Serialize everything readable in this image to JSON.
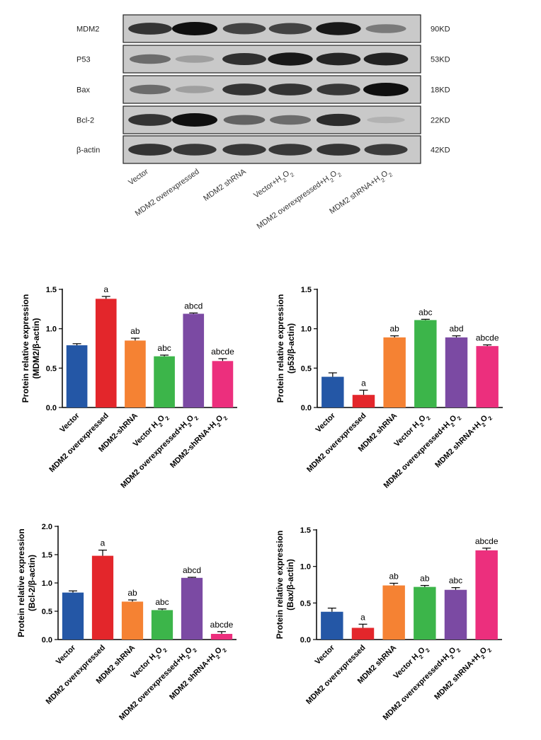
{
  "blot": {
    "rows": [
      {
        "label": "MDM2",
        "size": "90KD",
        "intensity": [
          0.8,
          1.0,
          0.72,
          0.72,
          0.95,
          0.42
        ]
      },
      {
        "label": "P53",
        "size": "53KD",
        "intensity": [
          0.5,
          0.22,
          0.82,
          0.95,
          0.88,
          0.9
        ]
      },
      {
        "label": "Bax",
        "size": "18KD",
        "intensity": [
          0.5,
          0.22,
          0.8,
          0.8,
          0.78,
          1.0
        ]
      },
      {
        "label": "Bcl-2",
        "size": "22KD",
        "intensity": [
          0.8,
          1.0,
          0.55,
          0.5,
          0.85,
          0.12
        ]
      },
      {
        "label": "β-actin",
        "size": "42KD",
        "intensity": [
          0.8,
          0.78,
          0.78,
          0.78,
          0.8,
          0.76
        ]
      }
    ],
    "lanes": [
      {
        "text": "Vector"
      },
      {
        "text": "MDM2 overexpressed"
      },
      {
        "text": "MDM2 shRNA"
      },
      {
        "text": "Vector+H",
        "sub": "2",
        "text2": "O",
        "sub2": "2"
      },
      {
        "text": "MDM2 overexpressed+H",
        "sub": "2",
        "text2": "O",
        "sub2": "2"
      },
      {
        "text": "MDM2 shRNA+H",
        "sub": "2",
        "text2": "O",
        "sub2": "2"
      }
    ]
  },
  "colors": [
    "#2457a6",
    "#e3262b",
    "#f58233",
    "#3cb54a",
    "#7b4aa3",
    "#ec2f7d"
  ],
  "chart_data": [
    {
      "type": "bar",
      "ylabel": [
        "Protein relative expression",
        "(MDM2/β-actin)"
      ],
      "ylim": [
        0,
        1.5
      ],
      "yticks": [
        "0.0",
        "0.5",
        "1.0",
        "1.5"
      ],
      "categories": [
        {
          "text": "Vector"
        },
        {
          "text": "MDM2 overexpressed"
        },
        {
          "text": "MDM2-shRNA"
        },
        {
          "text": "Vector H",
          "sub": "2",
          "text2": "O",
          "sub2": "2"
        },
        {
          "text": "MDM2 overexpressed+H",
          "sub": "2",
          "text2": "O",
          "sub2": "2"
        },
        {
          "text": "MDM2-shRNA+H",
          "sub": "2",
          "text2": "O",
          "sub2": "2"
        }
      ],
      "values": [
        0.79,
        1.38,
        0.85,
        0.65,
        1.19,
        0.59
      ],
      "errors": [
        0.02,
        0.03,
        0.03,
        0.015,
        0.01,
        0.03
      ],
      "annotations": [
        "",
        "a",
        "ab",
        "abc",
        "abcd",
        "abcde"
      ]
    },
    {
      "type": "bar",
      "ylabel": [
        "Protein relative expression",
        "(p53/β-actin)"
      ],
      "ylim": [
        0,
        1.5
      ],
      "yticks": [
        "0.0",
        "0.5",
        "1.0",
        "1.5"
      ],
      "categories": [
        {
          "text": "Vector"
        },
        {
          "text": "MDM2 overexpressed"
        },
        {
          "text": "MDM2 shRNA"
        },
        {
          "text": "Vector H",
          "sub": "2",
          "text2": "O",
          "sub2": "2"
        },
        {
          "text": "MDM2 overexpressed+H",
          "sub": "2",
          "text2": "O",
          "sub2": "2"
        },
        {
          "text": "MDM2 shRNA+H",
          "sub": "2",
          "text2": "O",
          "sub2": "2"
        }
      ],
      "values": [
        0.39,
        0.16,
        0.89,
        1.11,
        0.89,
        0.78
      ],
      "errors": [
        0.05,
        0.06,
        0.02,
        0.01,
        0.02,
        0.015
      ],
      "annotations": [
        "",
        "a",
        "ab",
        "abc",
        "abd",
        "abcde"
      ]
    },
    {
      "type": "bar",
      "ylabel": [
        "Protein relative expression",
        "(Bcl-2/β-actin)"
      ],
      "ylim": [
        0,
        2.0
      ],
      "yticks": [
        "0.0",
        "0.5",
        "1.0",
        "1.5",
        "2.0"
      ],
      "categories": [
        {
          "text": "Vector"
        },
        {
          "text": "MDM2 overexpressed"
        },
        {
          "text": "MDM2 shRNA"
        },
        {
          "text": "Vector H",
          "sub": "2",
          "text2": "O",
          "sub2": "2"
        },
        {
          "text": "MDM2 overexpressed+H",
          "sub": "2",
          "text2": "O",
          "sub2": "2"
        },
        {
          "text": "MDM2 shRNA+H",
          "sub": "2",
          "text2": "O",
          "sub2": "2"
        }
      ],
      "values": [
        0.83,
        1.48,
        0.67,
        0.52,
        1.09,
        0.1
      ],
      "errors": [
        0.03,
        0.1,
        0.03,
        0.02,
        0.01,
        0.04
      ],
      "annotations": [
        "",
        "a",
        "ab",
        "abc",
        "abcd",
        "abcde"
      ]
    },
    {
      "type": "bar",
      "ylabel": [
        "Protein relative expression",
        "(Bax/β-actin)"
      ],
      "ylim": [
        0,
        1.5
      ],
      "yticks": [
        "0.0",
        "0.5",
        "1.0",
        "1.5"
      ],
      "categories": [
        {
          "text": "Vector"
        },
        {
          "text": "MDM2 overexpressed"
        },
        {
          "text": "MDM2 shRNA"
        },
        {
          "text": "Vector H",
          "sub": "2",
          "text2": "O",
          "sub2": "2"
        },
        {
          "text": "MDM2 overexpressed+H",
          "sub": "2",
          "text2": "O",
          "sub2": "2"
        },
        {
          "text": "MDM2 shRNA+H",
          "sub": "2",
          "text2": "O",
          "sub2": "2"
        }
      ],
      "values": [
        0.38,
        0.16,
        0.74,
        0.72,
        0.68,
        1.22
      ],
      "errors": [
        0.05,
        0.05,
        0.03,
        0.02,
        0.03,
        0.03
      ],
      "annotations": [
        "",
        "a",
        "ab",
        "ab",
        "abc",
        "abcde"
      ]
    }
  ]
}
